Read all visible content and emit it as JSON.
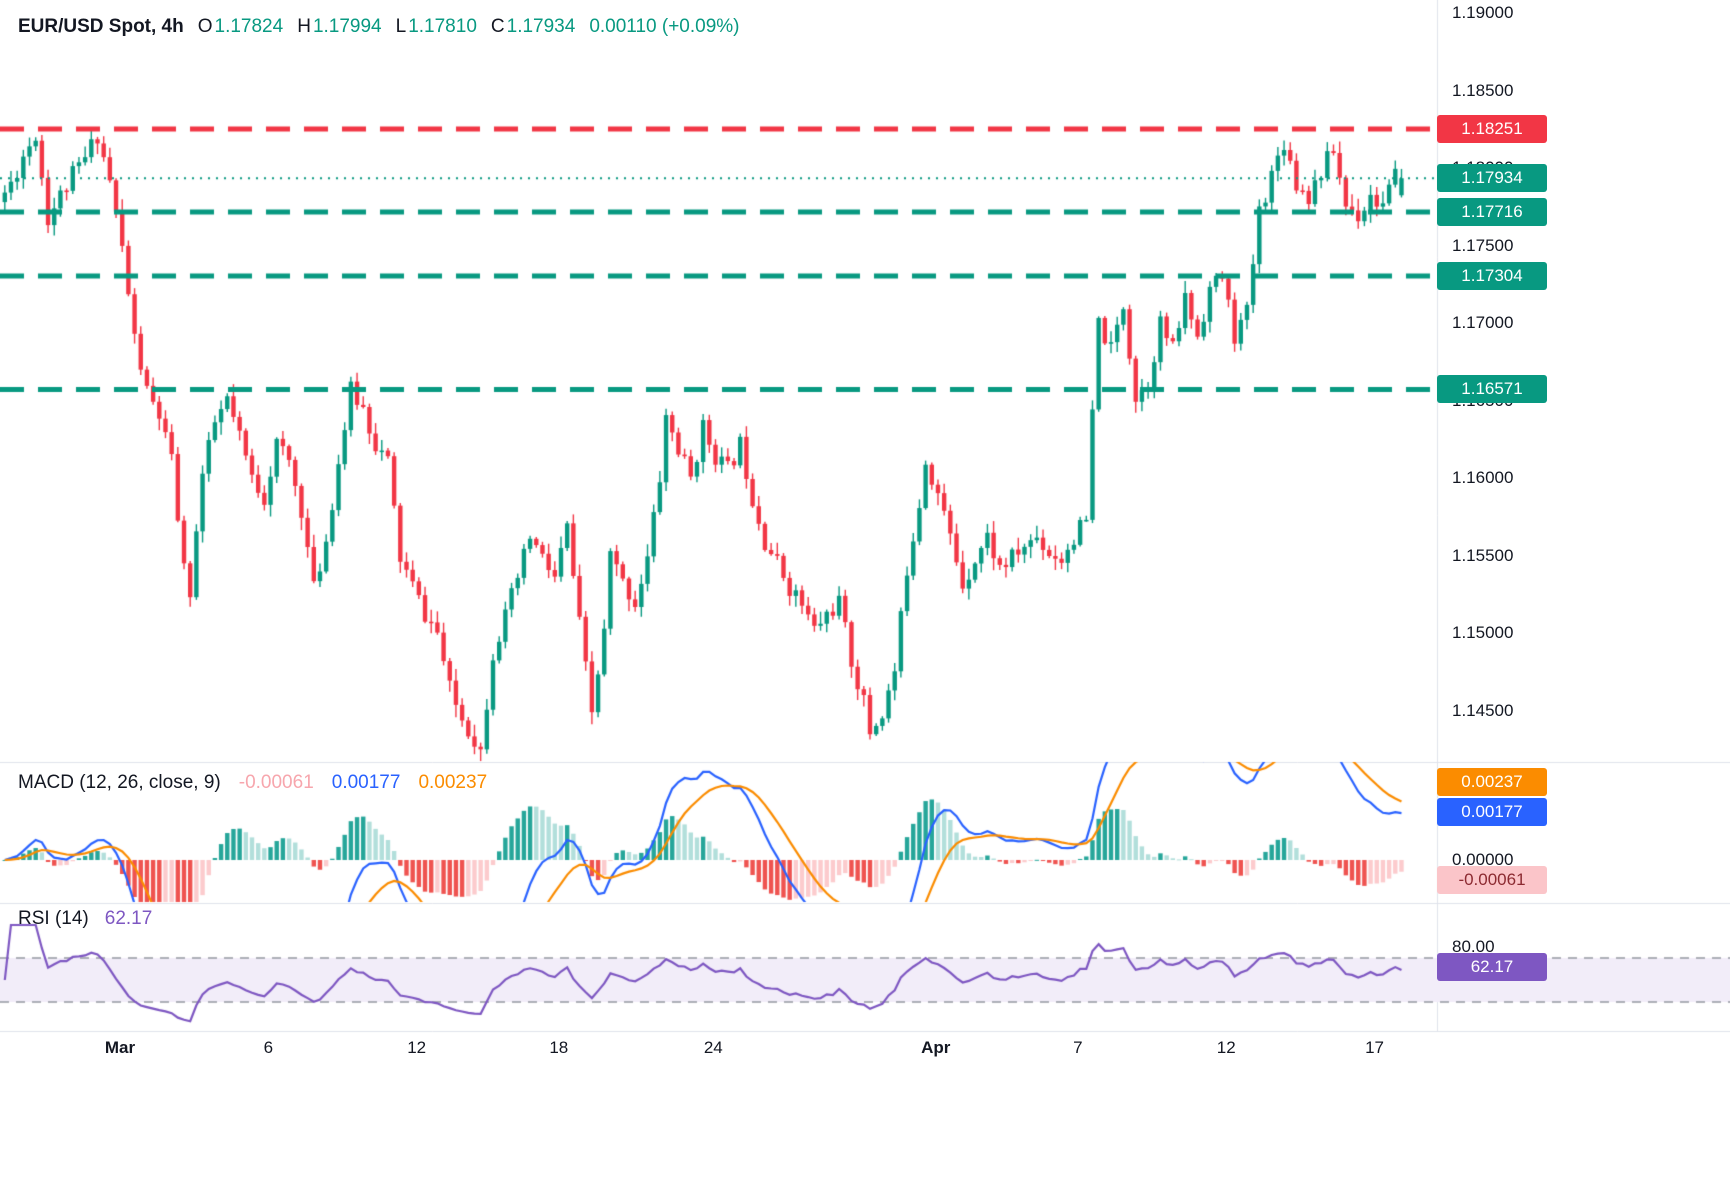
{
  "header": {
    "title": "EUR/USD Spot, 4h",
    "ohlc": [
      {
        "label": "O",
        "value": "1.17824"
      },
      {
        "label": "H",
        "value": "1.17994"
      },
      {
        "label": "L",
        "value": "1.17810"
      },
      {
        "label": "C",
        "value": "1.17934"
      }
    ],
    "change": "0.00110",
    "change_pct": "(+0.09%)"
  },
  "colors": {
    "up": "#089981",
    "down": "#f23645",
    "macd_line": "#2962ff",
    "signal_line": "#fb8c00",
    "hist_grow_above": "#26a69a",
    "hist_fall_above": "#b2dfdb",
    "hist_fall_below": "#ef5350",
    "hist_grow_below": "#fccbcd",
    "hist_legend": "#f7a6ad",
    "rsi_line": "#7e57c2",
    "rsi_band": "#f2edf9",
    "rsi_guides": "#9598a1",
    "separator": "#e0e3eb",
    "text": "#131722"
  },
  "price_scale": {
    "ticks": [
      "1.19000",
      "1.18500",
      "1.18000",
      "1.17500",
      "1.17000",
      "1.16500",
      "1.16000",
      "1.15500",
      "1.15000",
      "1.14500"
    ]
  },
  "macd": {
    "label": "MACD (12, 26, close, 9)",
    "hist_value": "-0.00061",
    "macd_value": "0.00177",
    "signal_value": "0.00237",
    "zero_tick": "0.00000"
  },
  "rsi": {
    "label": "RSI (14)",
    "value": "62.17",
    "tick": "80.00"
  },
  "levels": [
    {
      "value": 1.18251,
      "color": "#f23645",
      "style": "dashed"
    },
    {
      "value": 1.17716,
      "color": "#089981",
      "style": "dashed"
    },
    {
      "value": 1.17304,
      "color": "#089981",
      "style": "dashed"
    },
    {
      "value": 1.16571,
      "color": "#089981",
      "style": "dashed"
    }
  ],
  "current_price_line": {
    "value": 1.17934,
    "color": "#089981",
    "style": "dotted"
  },
  "badges": [
    {
      "text": "1.18251",
      "pane": "price",
      "value": 1.18251,
      "bg": "#f23645",
      "fg": "#ffffff"
    },
    {
      "text": "1.17934",
      "pane": "price",
      "value": 1.17934,
      "bg": "#089981",
      "fg": "#ffffff"
    },
    {
      "text": "1.17716",
      "pane": "price",
      "value": 1.17716,
      "bg": "#089981",
      "fg": "#ffffff"
    },
    {
      "text": "1.17304",
      "pane": "price",
      "value": 1.17304,
      "bg": "#089981",
      "fg": "#ffffff"
    },
    {
      "text": "1.16571",
      "pane": "price",
      "value": 1.16571,
      "bg": "#089981",
      "fg": "#ffffff"
    },
    {
      "text": "0.00237",
      "pane": "macd",
      "value": 0.00237,
      "bg": "#fb8c00",
      "fg": "#ffffff"
    },
    {
      "text": "0.00177",
      "pane": "macd",
      "value": 0.00177,
      "bg": "#2962ff",
      "fg": "#ffffff"
    },
    {
      "text": "-0.00061",
      "pane": "macd",
      "value": -0.00061,
      "bg": "#fbc5c9",
      "fg": "#8c2a31"
    },
    {
      "text": "62.17",
      "pane": "rsi",
      "value": 62.17,
      "bg": "#7e57c2",
      "fg": "#ffffff"
    }
  ],
  "time_axis": {
    "labels": [
      {
        "text": "Mar",
        "index": 19,
        "bold": true
      },
      {
        "text": "6",
        "index": 43,
        "bold": false
      },
      {
        "text": "12",
        "index": 67,
        "bold": false
      },
      {
        "text": "18",
        "index": 90,
        "bold": false
      },
      {
        "text": "24",
        "index": 115,
        "bold": false
      },
      {
        "text": "Apr",
        "index": 151,
        "bold": true
      },
      {
        "text": "7",
        "index": 174,
        "bold": false
      },
      {
        "text": "12",
        "index": 198,
        "bold": false
      },
      {
        "text": "17",
        "index": 222,
        "bold": false
      }
    ]
  },
  "chart_data": {
    "type": "candlestick",
    "title": "EUR/USD Spot, 4h",
    "panes": [
      "price",
      "MACD (12, 26, close, 9)",
      "RSI (14)"
    ],
    "last_candle": {
      "o": 1.17824,
      "h": 1.17994,
      "l": 1.1781,
      "c": 1.17934
    },
    "change": 0.0011,
    "change_pct": 0.09,
    "price_levels": [
      {
        "price": 1.18251,
        "role": "resistance"
      },
      {
        "price": 1.17716,
        "role": "support"
      },
      {
        "price": 1.17304,
        "role": "support"
      },
      {
        "price": 1.16571,
        "role": "support"
      }
    ],
    "y_range": [
      1.1415,
      1.191
    ],
    "x_labels": [
      "Mar",
      "6",
      "12",
      "18",
      "24",
      "Apr",
      "7",
      "12",
      "17"
    ],
    "macd": {
      "fast": 12,
      "slow": 26,
      "source": "close",
      "smoothing": 9,
      "histogram": -0.00061,
      "macd": 0.00177,
      "signal": 0.00237
    },
    "rsi": {
      "period": 14,
      "value": 62.17,
      "upper_band": 70,
      "lower_band": 30
    },
    "candle_count": 227,
    "seed": 11,
    "price_keyframes": [
      [
        0,
        1.1778
      ],
      [
        2,
        1.179
      ],
      [
        4,
        1.1808
      ],
      [
        6,
        1.1822
      ],
      [
        8,
        1.1768
      ],
      [
        10,
        1.1782
      ],
      [
        12,
        1.1795
      ],
      [
        14,
        1.1806
      ],
      [
        16,
        1.1822
      ],
      [
        18,
        1.1792
      ],
      [
        20,
        1.1748
      ],
      [
        22,
        1.169
      ],
      [
        24,
        1.1655
      ],
      [
        26,
        1.164
      ],
      [
        28,
        1.161
      ],
      [
        30,
        1.154
      ],
      [
        31,
        1.1528
      ],
      [
        33,
        1.1602
      ],
      [
        35,
        1.1635
      ],
      [
        37,
        1.165
      ],
      [
        39,
        1.1625
      ],
      [
        41,
        1.16
      ],
      [
        43,
        1.1588
      ],
      [
        45,
        1.1622
      ],
      [
        47,
        1.161
      ],
      [
        49,
        1.158
      ],
      [
        51,
        1.1528
      ],
      [
        53,
        1.156
      ],
      [
        55,
        1.161
      ],
      [
        57,
        1.1656
      ],
      [
        59,
        1.1645
      ],
      [
        61,
        1.1622
      ],
      [
        63,
        1.161
      ],
      [
        65,
        1.1548
      ],
      [
        67,
        1.153
      ],
      [
        69,
        1.1512
      ],
      [
        71,
        1.15
      ],
      [
        73,
        1.1463
      ],
      [
        75,
        1.1445
      ],
      [
        77,
        1.1432
      ],
      [
        78,
        1.1424
      ],
      [
        80,
        1.1488
      ],
      [
        82,
        1.151
      ],
      [
        84,
        1.1535
      ],
      [
        86,
        1.1562
      ],
      [
        88,
        1.1548
      ],
      [
        90,
        1.1535
      ],
      [
        92,
        1.1568
      ],
      [
        94,
        1.1505
      ],
      [
        96,
        1.1448
      ],
      [
        98,
        1.15
      ],
      [
        99,
        1.155
      ],
      [
        101,
        1.1532
      ],
      [
        103,
        1.152
      ],
      [
        105,
        1.1548
      ],
      [
        107,
        1.16
      ],
      [
        108,
        1.164
      ],
      [
        110,
        1.1618
      ],
      [
        112,
        1.16
      ],
      [
        114,
        1.1632
      ],
      [
        116,
        1.1615
      ],
      [
        118,
        1.1605
      ],
      [
        120,
        1.1622
      ],
      [
        122,
        1.1588
      ],
      [
        124,
        1.156
      ],
      [
        126,
        1.1545
      ],
      [
        128,
        1.153
      ],
      [
        130,
        1.1518
      ],
      [
        132,
        1.1502
      ],
      [
        134,
        1.1512
      ],
      [
        136,
        1.152
      ],
      [
        138,
        1.1482
      ],
      [
        140,
        1.1455
      ],
      [
        141,
        1.1436
      ],
      [
        143,
        1.1448
      ],
      [
        145,
        1.1475
      ],
      [
        147,
        1.1542
      ],
      [
        149,
        1.1585
      ],
      [
        150,
        1.1612
      ],
      [
        152,
        1.159
      ],
      [
        154,
        1.1562
      ],
      [
        156,
        1.1532
      ],
      [
        158,
        1.1548
      ],
      [
        160,
        1.1562
      ],
      [
        162,
        1.1542
      ],
      [
        164,
        1.1548
      ],
      [
        166,
        1.1556
      ],
      [
        168,
        1.1562
      ],
      [
        170,
        1.1552
      ],
      [
        172,
        1.1548
      ],
      [
        174,
        1.1562
      ],
      [
        176,
        1.1572
      ],
      [
        177,
        1.164
      ],
      [
        178,
        1.17
      ],
      [
        180,
        1.1682
      ],
      [
        182,
        1.1712
      ],
      [
        184,
        1.1652
      ],
      [
        186,
        1.1662
      ],
      [
        188,
        1.17
      ],
      [
        190,
        1.1682
      ],
      [
        192,
        1.1716
      ],
      [
        194,
        1.1692
      ],
      [
        196,
        1.1722
      ],
      [
        198,
        1.173
      ],
      [
        200,
        1.1692
      ],
      [
        202,
        1.1706
      ],
      [
        204,
        1.1772
      ],
      [
        206,
        1.1796
      ],
      [
        208,
        1.1818
      ],
      [
        210,
        1.179
      ],
      [
        212,
        1.1782
      ],
      [
        214,
        1.1798
      ],
      [
        216,
        1.1812
      ],
      [
        218,
        1.1776
      ],
      [
        220,
        1.177
      ],
      [
        222,
        1.1782
      ],
      [
        224,
        1.1776
      ],
      [
        226,
        1.17934
      ]
    ]
  }
}
